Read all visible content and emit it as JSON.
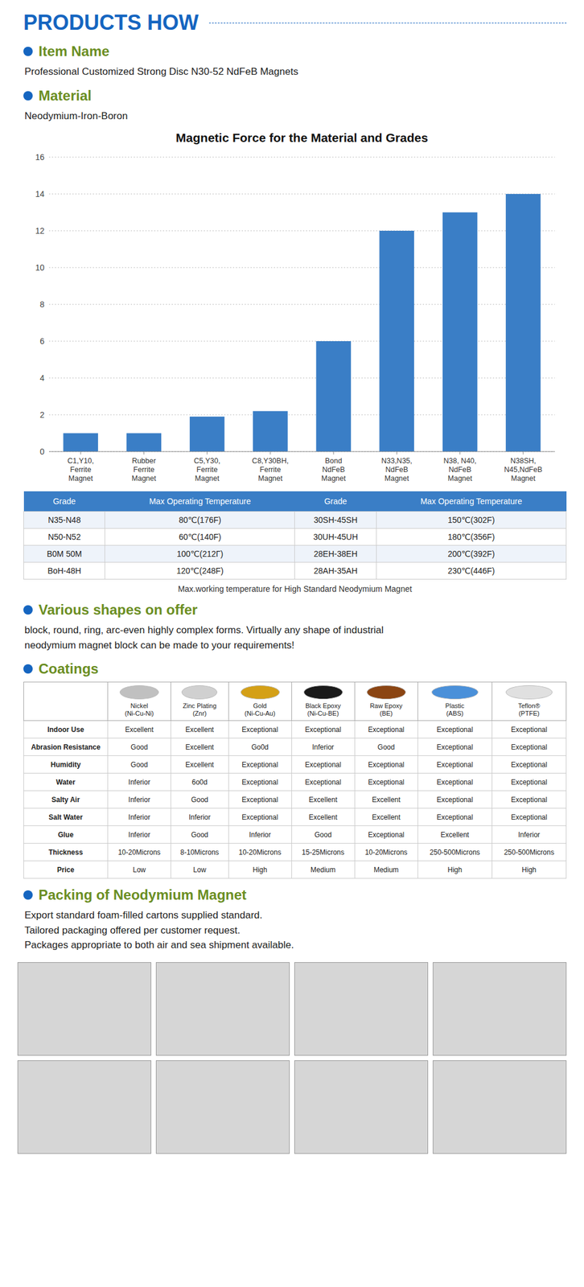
{
  "header": {
    "text": "PRODUCTS HOW",
    "color": "#1565C0"
  },
  "bullet_color": "#6B8E23",
  "dot_color": "#1565C0",
  "sections": [
    {
      "label": "Item Name",
      "text": "Professional Customized Strong Disc N30-52 NdFeB Magnets"
    },
    {
      "label": "Material",
      "text": "Neodymium-Iron-Boron"
    }
  ],
  "chart_data": {
    "type": "bar",
    "title": "Magnetic Force for the Material and Grades",
    "categories": [
      "C1,Y10,\nFerrite\nMagnet",
      "Rubber\nFerrite\nMagnet",
      "C5,Y30,\nFerrite\nMagnet",
      "C8,Y30BH,\nFerrite\nMagnet",
      "Bond\nNdFeB\nMagnet",
      "N33,N35,\nNdFeB\nMagnet",
      "N38, N40,\nNdFeB\nMagnet",
      "N38SH,\nN45,NdFeB\nMagnet"
    ],
    "values": [
      1.0,
      1.0,
      1.9,
      2.2,
      6.0,
      12.0,
      13.0,
      14.0
    ],
    "color": "#3A7EC6",
    "ylim": [
      0,
      16
    ],
    "yticks": [
      0,
      2,
      4,
      6,
      8,
      10,
      12,
      14,
      16
    ],
    "grid": true
  },
  "temperature_table": {
    "header_color": "#3A7EC6",
    "headers": [
      "Grade",
      "Max Operating Temperature",
      "Grade",
      "Max Operating Temperature"
    ],
    "rows": [
      [
        "N35-N48",
        "80℃(176F)",
        "30SH-45SH",
        "150℃(302F)"
      ],
      [
        "N50-N52",
        "60℃(140F)",
        "30UH-45UH",
        "180℃(356F)"
      ],
      [
        "B0M 50M",
        "100℃(212Γ)",
        "28EH-38EH",
        "200℃(392F)"
      ],
      [
        "BoH-48H",
        "120℃(248F)",
        "28AH-35AH",
        "230℃(446F)"
      ]
    ],
    "note": "Max.working temperature for High Standard Neodymium Magnet"
  },
  "shapes": {
    "label": "Various shapes on offer",
    "text": "block, round, ring, arc-even highly complex forms. Virtually any shape of industrial\nneodymium magnet block can be made to your requirements!"
  },
  "coatings": {
    "label": "Coatings",
    "headers": [
      "Nickel\n(Ni-Cu-Ni)",
      "Zinc Plating\n(Znr)",
      "Gold\n(Ni-Cu-Au)",
      "Black Epoxy\n(Ni-Cu-BE)",
      "Raw Epoxy\n(BE)",
      "Plastic\n(ABS)",
      "Teflon®\n(PTFE)"
    ],
    "icon_colors": [
      "#C0C0C0",
      "#D0D0D0",
      "#D4A017",
      "#1A1A1A",
      "#8B4513",
      "#4A90D9",
      "#E0E0E0"
    ],
    "rows": [
      [
        "Indoor Use",
        "Excellent",
        "Excellent",
        "Exceptional",
        "Exceptional",
        "Exceptional",
        "Exceptional",
        "Exceptional"
      ],
      [
        "Abrasion Resistance",
        "Good",
        "Excellent",
        "Go0d",
        "Inferior",
        "Good",
        "Exceptional",
        "Exceptional"
      ],
      [
        "Humidity",
        "Good",
        "Excellent",
        "Exceptional",
        "Exceptional",
        "Exceptional",
        "Exceptional",
        "Exceptional"
      ],
      [
        "Water",
        "Inferior",
        "6o0d",
        "Exceptional",
        "Exceptional",
        "Exceptional",
        "Exceptional",
        "Exceptional"
      ],
      [
        "Salty Air",
        "Inferior",
        "Good",
        "Exceptional",
        "Excellent",
        "Excellent",
        "Exceptional",
        "Exceptional"
      ],
      [
        "Salt Water",
        "Inferior",
        "Inferior",
        "Exceptional",
        "Excellent",
        "Excellent",
        "Exceptional",
        "Exceptional"
      ],
      [
        "Glue",
        "Inferior",
        "Good",
        "Inferior",
        "Good",
        "Exceptional",
        "Excellent",
        "Inferior"
      ],
      [
        "Thickness",
        "10-20Microns",
        "8-10Microns",
        "10-20Microns",
        "15-25Microns",
        "10-20Microns",
        "250-500Microns",
        "250-500Microns"
      ],
      [
        "Price",
        "Low",
        "Low",
        "High",
        "Medium",
        "Medium",
        "High",
        "High"
      ]
    ]
  },
  "packing": {
    "label": "Packing of Neodymium Magnet",
    "text": "Export standard foam-filled cartons supplied standard.\nTailored packaging offered per customer request.\nPackages appropriate to both air and sea shipment available."
  }
}
